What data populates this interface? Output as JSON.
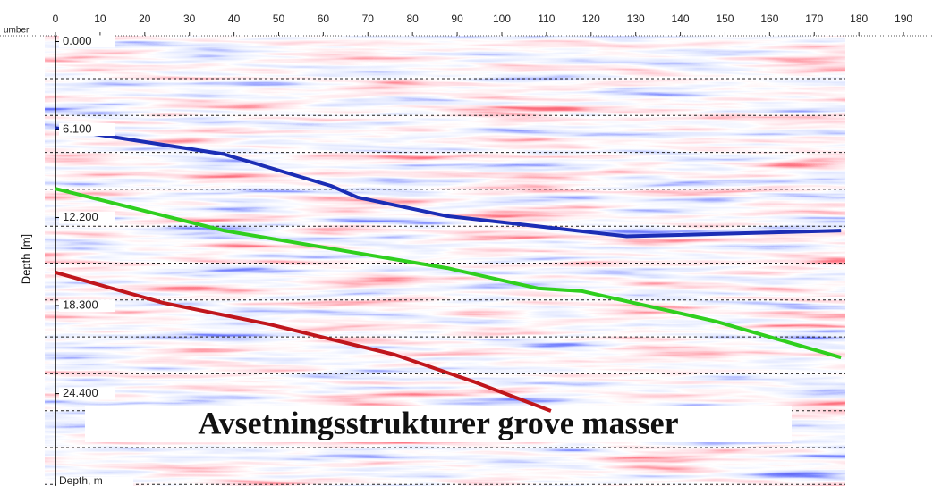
{
  "chart_data": {
    "type": "line",
    "x_label": "umber",
    "y_label": "Depth [m]",
    "y_unit_label": "Depth, m",
    "annotation": "Avsetningsstrukturer grove masser",
    "xlim": [
      0,
      196.6
    ],
    "ylim": [
      -0.4,
      30.8
    ],
    "y_reversed": true,
    "xticks": [
      0,
      10,
      20,
      30,
      40,
      50,
      60,
      70,
      80,
      90,
      100,
      110,
      120,
      130,
      140,
      150,
      160,
      170,
      180,
      190
    ],
    "yticks": [
      {
        "value": 0,
        "label": "0.000"
      },
      {
        "value": 6.1,
        "label": "6.100"
      },
      {
        "value": 12.2,
        "label": "12.200"
      },
      {
        "value": 18.3,
        "label": "18.300"
      },
      {
        "value": 24.4,
        "label": "24.400"
      }
    ],
    "series": [
      {
        "color": "#1b2db5",
        "x": [
          0,
          37.7,
          61.7,
          67.7,
          87.8,
          128,
          176
        ],
        "values": [
          6.0,
          7.8,
          10.0,
          10.8,
          12.1,
          13.5,
          13.1
        ]
      },
      {
        "color": "#2fcf1e",
        "x": [
          0,
          37.7,
          87.8,
          108,
          118,
          148,
          176
        ],
        "values": [
          10.2,
          13.1,
          15.7,
          17.1,
          17.3,
          19.4,
          21.9
        ]
      },
      {
        "color": "#c0161c",
        "x": [
          0,
          24,
          48,
          76,
          94,
          111
        ],
        "values": [
          16.0,
          18.1,
          19.6,
          21.7,
          23.6,
          25.6
        ]
      }
    ]
  }
}
